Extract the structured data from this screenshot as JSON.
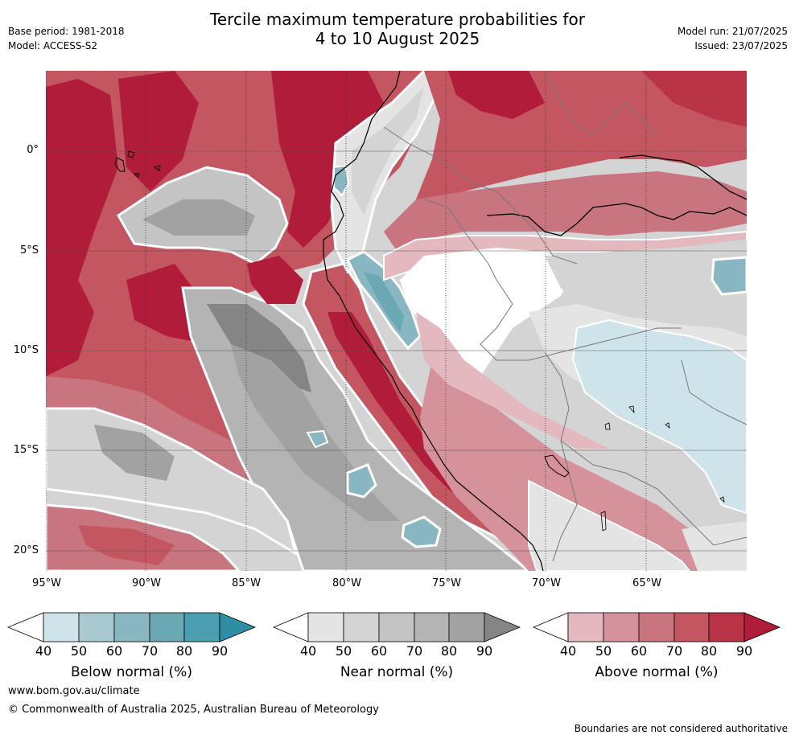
{
  "header": {
    "title_line1": "Tercile maximum temperature probabilities for",
    "title_line2": "4 to 10 August 2025",
    "base_period": "Base period: 1981-2018",
    "model": "Model: ACCESS-S2",
    "model_run": "Model run: 21/07/2025",
    "issued": "Issued: 23/07/2025"
  },
  "map": {
    "lat_labels": [
      "0°",
      "5°S",
      "10°S",
      "15°S",
      "20°S"
    ],
    "lon_labels": [
      "95°W",
      "90°W",
      "85°W",
      "80°W",
      "75°W",
      "70°W",
      "65°W"
    ]
  },
  "colorbars": [
    {
      "label": "Below normal (%)",
      "ticks": [
        "40",
        "50",
        "60",
        "70",
        "80",
        "90"
      ],
      "colors": [
        "#cfe4ea",
        "#a8c9cf",
        "#88b6c1",
        "#6aa9b4",
        "#4a9eaf",
        "#2f8ea4"
      ]
    },
    {
      "label": "Near normal (%)",
      "ticks": [
        "40",
        "50",
        "60",
        "70",
        "80",
        "90"
      ],
      "colors": [
        "#e4e4e4",
        "#d4d4d4",
        "#c4c4c4",
        "#b4b4b4",
        "#a2a2a2",
        "#858585"
      ]
    },
    {
      "label": "Above normal (%)",
      "ticks": [
        "40",
        "50",
        "60",
        "70",
        "80",
        "90"
      ],
      "colors": [
        "#e3b8bf",
        "#d5929b",
        "#c97580",
        "#c35661",
        "#b83446",
        "#b01c39"
      ]
    }
  ],
  "footer": {
    "website": "www.bom.gov.au/climate",
    "copyright": "© Commonwealth of Australia 2025, Australian Bureau of Meteorology",
    "disclaimer": "Boundaries are not considered authoritative"
  },
  "colors": {
    "above_90": "#b01c39",
    "above_80": "#b83446",
    "above_70": "#c35661",
    "above_60": "#c97580",
    "above_50": "#d5929b",
    "above_40": "#e3b8bf",
    "near_40": "#e4e4e4",
    "near_50": "#d4d4d4",
    "near_60": "#c4c4c4",
    "near_70": "#b4b4b4",
    "near_90": "#858585",
    "below_40": "#cfe4ea",
    "below_60": "#88b6c1",
    "below_70": "#6aa9b4"
  }
}
